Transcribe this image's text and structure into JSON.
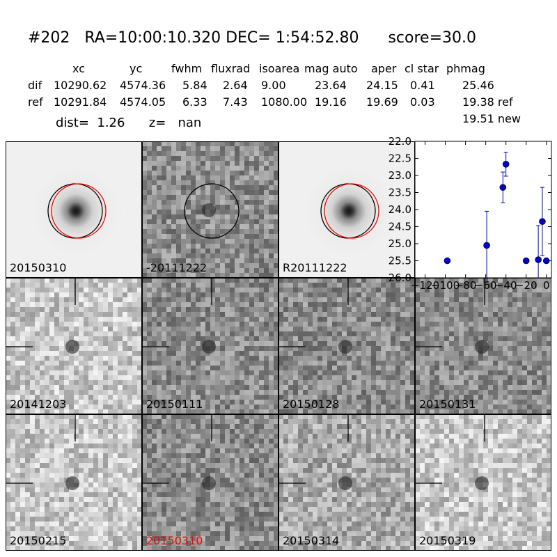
{
  "header": {
    "title": "#202   RA=10:00:10.320 DEC= 1:54:52.80      score=30.0",
    "columns": [
      "xc",
      "yc",
      "fwhm",
      "fluxrad",
      "isoarea",
      "mag auto",
      "aper",
      "cl star",
      "phmag"
    ],
    "rows": [
      {
        "label": "dif",
        "values": [
          "10290.62",
          "4574.36",
          "5.84",
          "2.64",
          "9.00",
          "23.64",
          "24.15",
          "0.41",
          "25.46"
        ]
      },
      {
        "label": "ref",
        "values": [
          "10291.84",
          "4574.05",
          "6.33",
          "7.43",
          "1080.00",
          "19.16",
          "19.69",
          "0.03",
          "19.38 ref"
        ]
      }
    ],
    "dist_text": "dist=  1.26      z=   nan",
    "new_text": "19.51 new"
  },
  "stamps": [
    {
      "label": "20150310",
      "style": "smooth-galaxy",
      "circles": [
        "black",
        "red"
      ]
    },
    {
      "label": "-20111222",
      "style": "noisy-dark",
      "circles": [
        "black"
      ]
    },
    {
      "label": "R20111222",
      "style": "smooth-galaxy",
      "circles": [
        "black",
        "red"
      ]
    },
    {
      "label": "20141203",
      "style": "noisy-light",
      "crosshair": true
    },
    {
      "label": "20150111",
      "style": "noisy-dark",
      "crosshair": true
    },
    {
      "label": "20150128",
      "style": "noisy-dark",
      "crosshair": true
    },
    {
      "label": "20150131",
      "style": "noisy-dark",
      "crosshair": true
    },
    {
      "label": "20150215",
      "style": "noisy-light",
      "crosshair": true
    },
    {
      "label": "20150310",
      "style": "noisy-dark",
      "crosshair": true,
      "color": "#ff0000"
    },
    {
      "label": "20150314",
      "style": "noisy-mid",
      "crosshair": true
    },
    {
      "label": "20150319",
      "style": "noisy-light",
      "crosshair": true
    }
  ],
  "chart_data": {
    "type": "scatter",
    "title": "",
    "xlabel": "",
    "ylabel": "",
    "xlim": [
      -130,
      5
    ],
    "ylim": [
      26.0,
      22.0
    ],
    "y_inverted": true,
    "xticks": [
      -120,
      -100,
      -80,
      -60,
      -40,
      -20,
      0
    ],
    "xtick_labels": [
      "−120",
      "−100",
      "−80",
      "−60",
      "−40",
      "−20",
      "0"
    ],
    "yticks": [
      22.0,
      22.5,
      23.0,
      23.5,
      24.0,
      24.5,
      25.0,
      25.5,
      26.0
    ],
    "ytick_labels": [
      "22.0",
      "22.5",
      "23.0",
      "23.5",
      "24.0",
      "24.5",
      "25.0",
      "25.5",
      "26.0"
    ],
    "color": "#0000cc",
    "series": [
      {
        "points": [
          {
            "x": -98,
            "y": 25.5,
            "err": 0.05
          },
          {
            "x": -59,
            "y": 25.05,
            "err": 1.0
          },
          {
            "x": -43,
            "y": 23.35,
            "err": 0.45
          },
          {
            "x": -40,
            "y": 22.67,
            "err": 0.35
          },
          {
            "x": -20,
            "y": 25.5,
            "err": 0.05
          },
          {
            "x": -8,
            "y": 25.47,
            "err": 1.0
          },
          {
            "x": -4,
            "y": 24.35,
            "err": 1.0
          },
          {
            "x": 0,
            "y": 25.5,
            "err": 0.05
          }
        ]
      }
    ]
  }
}
